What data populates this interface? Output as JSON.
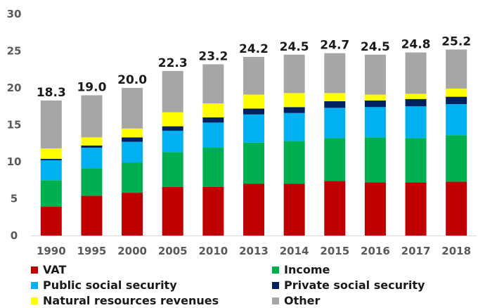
{
  "chart_data": {
    "type": "bar",
    "stacked": true,
    "title": "",
    "xlabel": "",
    "ylabel": "",
    "ylim": [
      0,
      30
    ],
    "yticks": [
      0,
      5,
      10,
      15,
      20,
      25,
      30
    ],
    "grid": false,
    "legend_position": "bottom",
    "categories": [
      "1990",
      "1995",
      "2000",
      "2005",
      "2010",
      "2013",
      "2014",
      "2015",
      "2016",
      "2017",
      "2018"
    ],
    "totals": [
      "18.3",
      "19.0",
      "20.0",
      "22.3",
      "23.2",
      "24.2",
      "24.5",
      "24.7",
      "24.5",
      "24.8",
      "25.2"
    ],
    "series": [
      {
        "name": "VAT",
        "color": "#c00000",
        "values": [
          3.9,
          5.4,
          5.8,
          6.6,
          6.6,
          7.0,
          7.0,
          7.4,
          7.2,
          7.2,
          7.3
        ]
      },
      {
        "name": "Income",
        "color": "#00b050",
        "values": [
          3.6,
          3.7,
          4.1,
          4.7,
          5.3,
          5.6,
          5.8,
          5.8,
          6.1,
          6.0,
          6.3
        ]
      },
      {
        "name": "Public social security",
        "color": "#00b0f0",
        "values": [
          2.7,
          2.8,
          2.8,
          2.9,
          3.4,
          3.8,
          3.8,
          4.1,
          4.1,
          4.3,
          4.2
        ]
      },
      {
        "name": "Private social security",
        "color": "#002060",
        "values": [
          0.2,
          0.3,
          0.6,
          0.6,
          0.7,
          0.8,
          0.8,
          0.9,
          0.9,
          1.0,
          1.0
        ]
      },
      {
        "name": "Natural resources revenues",
        "color": "#ffff00",
        "values": [
          1.4,
          1.1,
          1.2,
          1.9,
          1.9,
          1.9,
          1.9,
          1.1,
          0.8,
          0.7,
          1.1
        ]
      },
      {
        "name": "Other",
        "color": "#a6a6a6",
        "values": [
          6.5,
          5.7,
          5.5,
          5.6,
          5.3,
          5.1,
          5.2,
          5.4,
          5.4,
          5.6,
          5.3
        ]
      }
    ]
  },
  "legend": {
    "items": [
      {
        "label": "VAT",
        "color": "#c00000"
      },
      {
        "label": "Income",
        "color": "#00b050"
      },
      {
        "label": "Public social security",
        "color": "#00b0f0"
      },
      {
        "label": "Private social security",
        "color": "#002060"
      },
      {
        "label": "Natural resources revenues",
        "color": "#ffff00"
      },
      {
        "label": "Other",
        "color": "#a6a6a6"
      }
    ]
  }
}
